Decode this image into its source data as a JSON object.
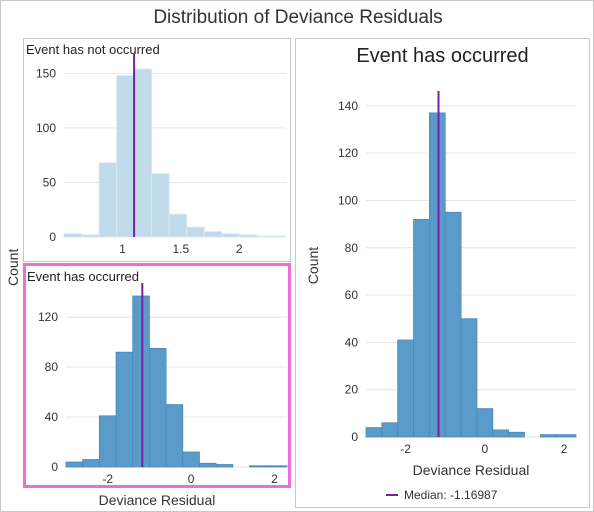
{
  "title": "Distribution of Deviance Residuals",
  "colors": {
    "bar_strong": "#5b9bc9",
    "bar_light": "#c2dbeb",
    "median_line": "#7b1fa2",
    "selection_border": "#f06cd8",
    "grid": "#e6e6e6"
  },
  "shared": {
    "ylabel": "Count",
    "xlabel": "Deviance Residual"
  },
  "legend": {
    "median_label": "Median: -1.16987"
  },
  "chart_data": [
    {
      "id": "not-occurred",
      "type": "bar",
      "title": "Event has not occurred",
      "xlim": [
        0.5,
        2.4
      ],
      "ylim": [
        0,
        165
      ],
      "xticks": [
        1,
        1.5,
        2
      ],
      "xtick_labels": [
        "1",
        "1.5",
        "2"
      ],
      "yticks": [
        0,
        50,
        100,
        150
      ],
      "bins": [
        {
          "x0": 0.5,
          "x1": 0.65,
          "value": 3
        },
        {
          "x0": 0.65,
          "x1": 0.8,
          "value": 2
        },
        {
          "x0": 0.8,
          "x1": 0.95,
          "value": 68
        },
        {
          "x0": 0.95,
          "x1": 1.1,
          "value": 148
        },
        {
          "x0": 1.1,
          "x1": 1.25,
          "value": 154
        },
        {
          "x0": 1.25,
          "x1": 1.4,
          "value": 58
        },
        {
          "x0": 1.4,
          "x1": 1.55,
          "value": 21
        },
        {
          "x0": 1.55,
          "x1": 1.7,
          "value": 9
        },
        {
          "x0": 1.7,
          "x1": 1.85,
          "value": 5
        },
        {
          "x0": 1.85,
          "x1": 2.0,
          "value": 3
        },
        {
          "x0": 2.0,
          "x1": 2.15,
          "value": 2
        },
        {
          "x0": 2.15,
          "x1": 2.3,
          "value": 1
        },
        {
          "x0": 2.3,
          "x1": 2.4,
          "value": 1
        }
      ],
      "median": 1.1,
      "style": "light"
    },
    {
      "id": "occurred-small",
      "type": "bar",
      "title": "Event has occurred",
      "xlim": [
        -3.0,
        2.3
      ],
      "ylim": [
        0,
        145
      ],
      "xticks": [
        -2,
        0,
        2
      ],
      "xtick_labels": [
        "-2",
        "0",
        "2"
      ],
      "yticks": [
        0,
        40,
        80,
        120
      ],
      "bins": [
        {
          "x0": -3.0,
          "x1": -2.6,
          "value": 4
        },
        {
          "x0": -2.6,
          "x1": -2.2,
          "value": 6
        },
        {
          "x0": -2.2,
          "x1": -1.8,
          "value": 41
        },
        {
          "x0": -1.8,
          "x1": -1.4,
          "value": 92
        },
        {
          "x0": -1.4,
          "x1": -1.0,
          "value": 137
        },
        {
          "x0": -1.0,
          "x1": -0.6,
          "value": 95
        },
        {
          "x0": -0.6,
          "x1": -0.2,
          "value": 50
        },
        {
          "x0": -0.2,
          "x1": 0.2,
          "value": 12
        },
        {
          "x0": 0.2,
          "x1": 0.6,
          "value": 3
        },
        {
          "x0": 0.6,
          "x1": 1.0,
          "value": 2
        },
        {
          "x0": 1.0,
          "x1": 1.4,
          "value": 0
        },
        {
          "x0": 1.4,
          "x1": 1.8,
          "value": 1
        },
        {
          "x0": 1.8,
          "x1": 2.3,
          "value": 1
        }
      ],
      "median": -1.16987,
      "style": "strong"
    },
    {
      "id": "occurred-large",
      "type": "bar",
      "title": "Event has occurred",
      "xlabel": "Deviance Residual",
      "ylabel": "Count",
      "xlim": [
        -3.0,
        2.3
      ],
      "ylim": [
        0,
        145
      ],
      "xticks": [
        -2,
        0,
        2
      ],
      "xtick_labels": [
        "-2",
        "0",
        "2"
      ],
      "yticks": [
        0,
        20,
        40,
        60,
        80,
        100,
        120,
        140
      ],
      "bins": [
        {
          "x0": -3.0,
          "x1": -2.6,
          "value": 4
        },
        {
          "x0": -2.6,
          "x1": -2.2,
          "value": 6
        },
        {
          "x0": -2.2,
          "x1": -1.8,
          "value": 41
        },
        {
          "x0": -1.8,
          "x1": -1.4,
          "value": 92
        },
        {
          "x0": -1.4,
          "x1": -1.0,
          "value": 137
        },
        {
          "x0": -1.0,
          "x1": -0.6,
          "value": 95
        },
        {
          "x0": -0.6,
          "x1": -0.2,
          "value": 50
        },
        {
          "x0": -0.2,
          "x1": 0.2,
          "value": 12
        },
        {
          "x0": 0.2,
          "x1": 0.6,
          "value": 3
        },
        {
          "x0": 0.6,
          "x1": 1.0,
          "value": 2
        },
        {
          "x0": 1.0,
          "x1": 1.4,
          "value": 0
        },
        {
          "x0": 1.4,
          "x1": 1.8,
          "value": 1
        },
        {
          "x0": 1.8,
          "x1": 2.3,
          "value": 1
        }
      ],
      "median": -1.16987,
      "style": "strong"
    }
  ]
}
